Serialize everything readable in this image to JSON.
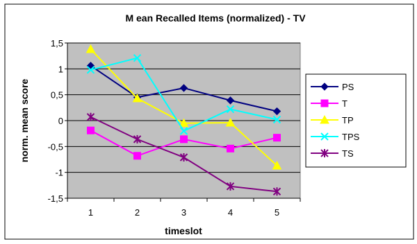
{
  "chart_data": {
    "type": "line",
    "title": "M ean Recalled Items (normalized) - TV",
    "xlabel": "timeslot",
    "ylabel": "norm. mean score",
    "categories": [
      "1",
      "2",
      "3",
      "4",
      "5"
    ],
    "y_ticks": [
      "1,5",
      "1",
      "0,5",
      "0",
      "-0,5",
      "-1",
      "-1,5"
    ],
    "y_tick_values": [
      1.5,
      1,
      0.5,
      0,
      -0.5,
      -1,
      -1.5
    ],
    "ylim": [
      -1.5,
      1.5
    ],
    "grid": true,
    "legend_position": "right",
    "plot_background": "#c0c0c0",
    "series": [
      {
        "name": "PS",
        "values": [
          1.06,
          0.45,
          0.63,
          0.39,
          0.18
        ],
        "color": "#000080",
        "marker": "diamond"
      },
      {
        "name": "T",
        "values": [
          -0.19,
          -0.68,
          -0.36,
          -0.54,
          -0.33
        ],
        "color": "#ff00ff",
        "marker": "square"
      },
      {
        "name": "TP",
        "values": [
          1.38,
          0.43,
          -0.05,
          -0.04,
          -0.87
        ],
        "color": "#ffff00",
        "marker": "triangle"
      },
      {
        "name": "TPS",
        "values": [
          0.98,
          1.21,
          -0.2,
          0.22,
          0.02
        ],
        "color": "#00ffff",
        "marker": "x"
      },
      {
        "name": "TS",
        "values": [
          0.07,
          -0.36,
          -0.71,
          -1.27,
          -1.37
        ],
        "color": "#800080",
        "marker": "star"
      }
    ]
  }
}
